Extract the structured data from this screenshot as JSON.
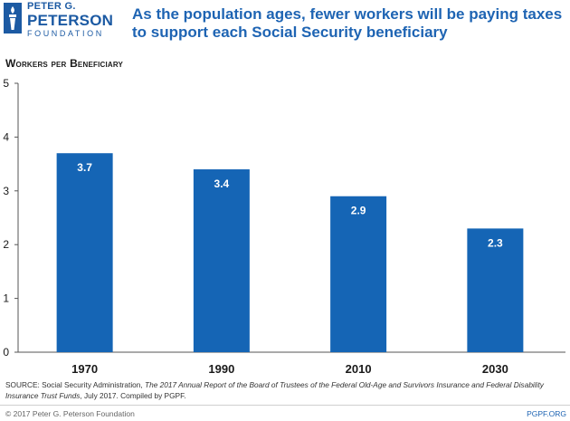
{
  "logo": {
    "line1": "PETER G.",
    "line2": "PETERSON",
    "line3": "FOUNDATION",
    "icon": "torch-icon"
  },
  "headline": {
    "line1": "As the population ages, fewer workers will be paying taxes",
    "line2": "to support each Social Security beneficiary"
  },
  "colors": {
    "bar": "#1565b5",
    "headline": "#1e64b3",
    "logo": "#1c5aa3"
  },
  "chart_data": {
    "type": "bar",
    "title": "",
    "ylabel": "Workers per Beneficiary",
    "xlabel": "",
    "categories": [
      "1970",
      "1990",
      "2010",
      "2030"
    ],
    "values": [
      3.7,
      3.4,
      2.9,
      2.3
    ],
    "data_labels": [
      "3.7",
      "3.4",
      "2.9",
      "2.3"
    ],
    "ylim": [
      0,
      5
    ],
    "yticks": [
      "0",
      "1",
      "2",
      "3",
      "4",
      "5"
    ],
    "grid": false,
    "legend": "none"
  },
  "footer": {
    "source_prefix": "SOURCE: Social Security Administration, ",
    "source_title": "The 2017 Annual Report of the Board of Trustees of the Federal Old-Age and Survivors Insurance and Federal Disability Insurance Trust Funds",
    "source_suffix": ", July 2017. Compiled by PGPF.",
    "copyright": "© 2017 Peter G. Peterson Foundation",
    "site": "PGPF.ORG"
  }
}
